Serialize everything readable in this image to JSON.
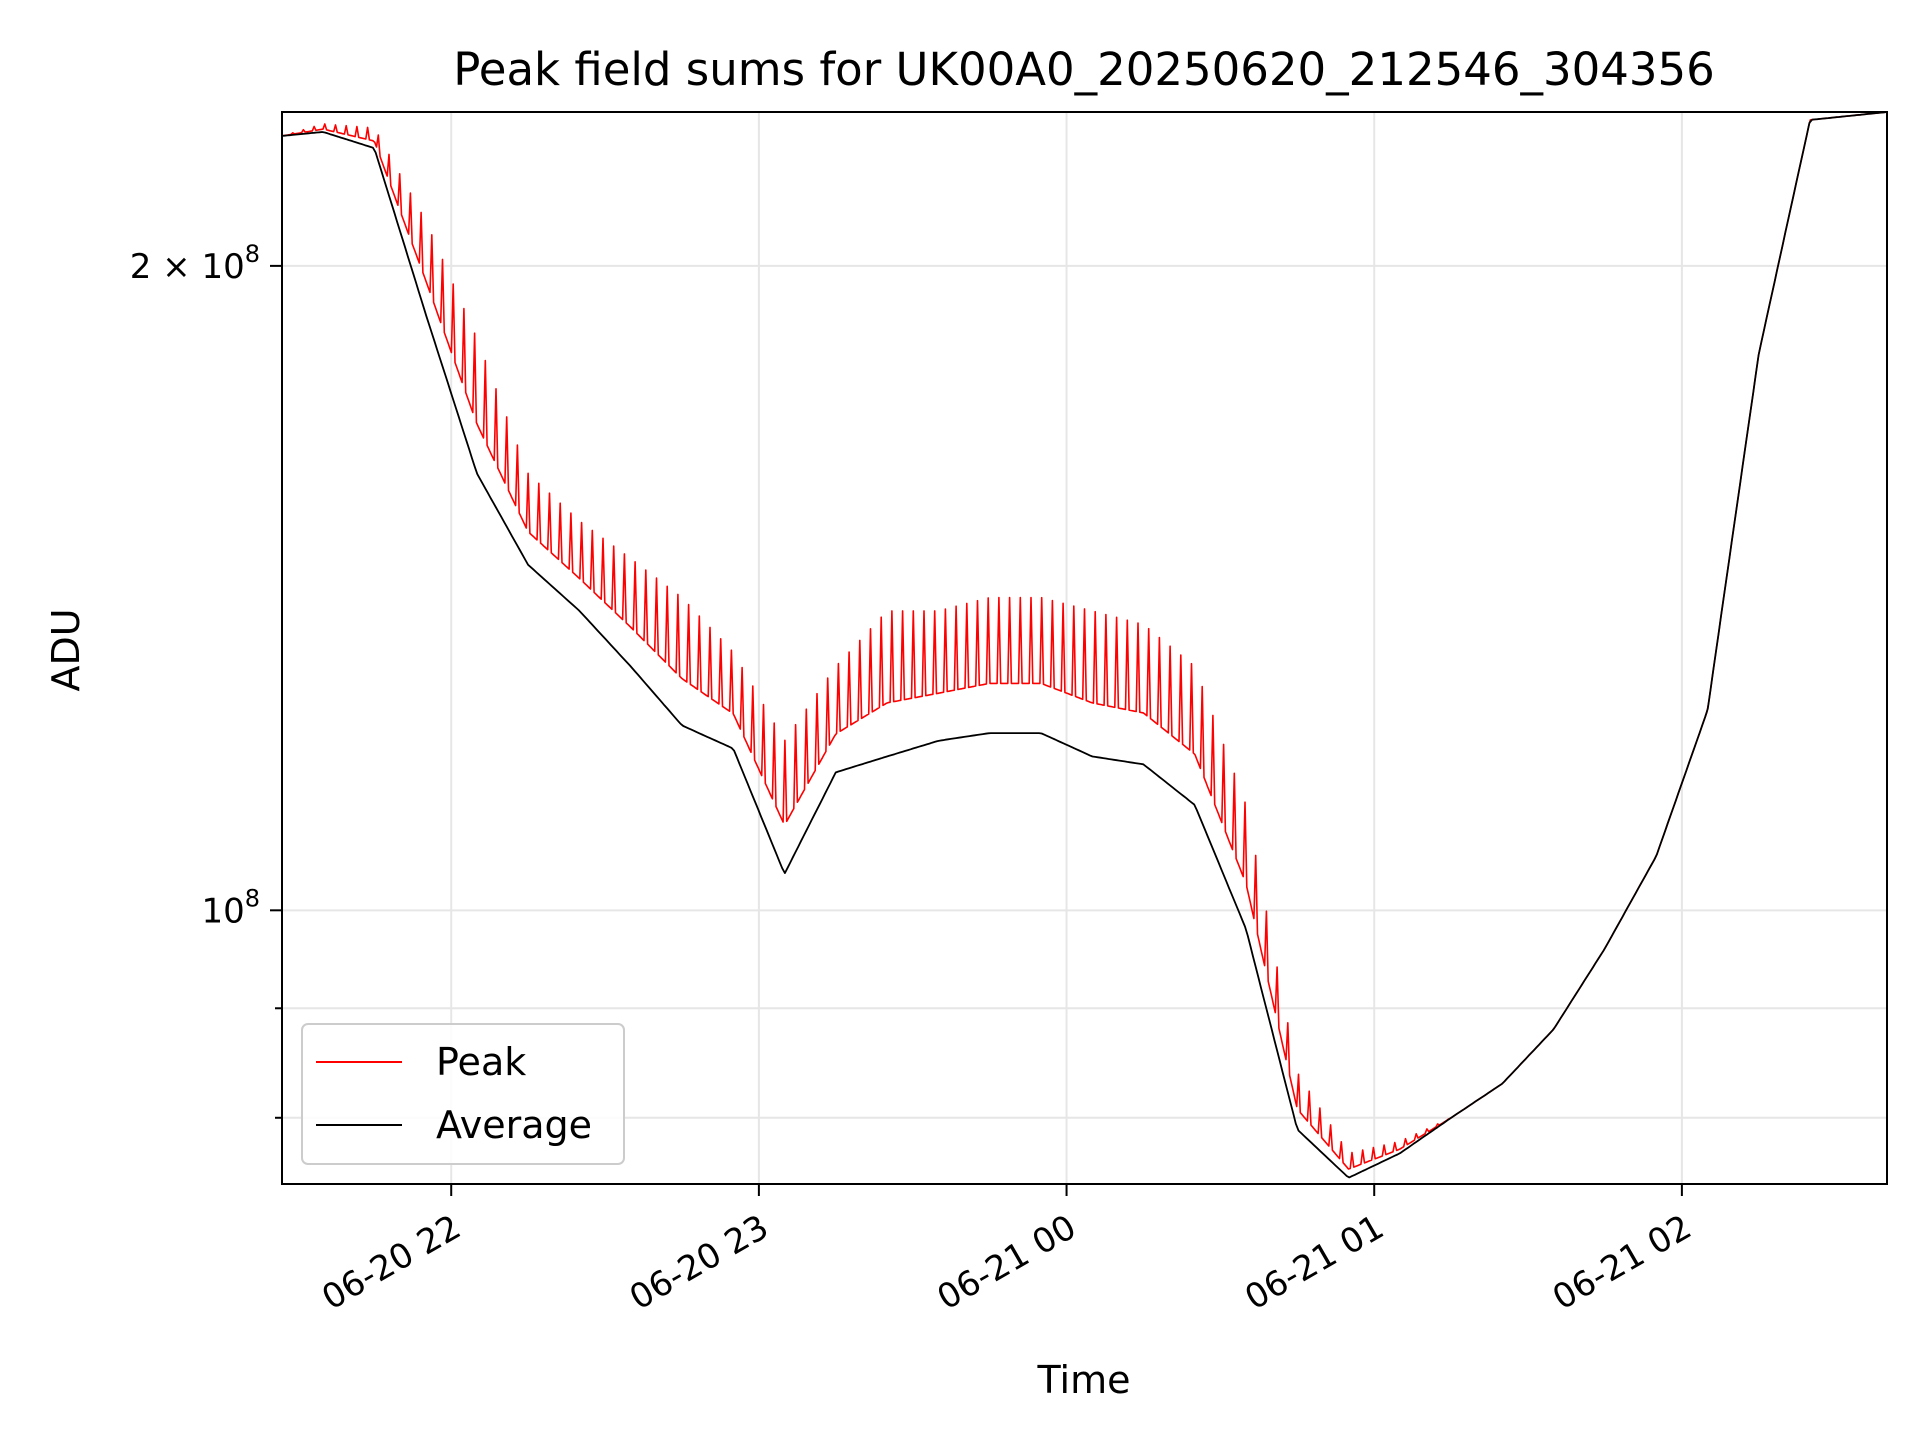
{
  "chart_data": {
    "type": "line",
    "title": "Peak field sums for UK00A0_20250620_212546_304356",
    "xlabel": "Time",
    "ylabel": "ADU",
    "yscale": "log",
    "grid": true,
    "legend_position": "lower-left",
    "xlim": [
      "2025-06-20 21:27",
      "2025-06-21 02:40"
    ],
    "ylim": [
      74500000,
      236000000
    ],
    "x_ticks": [
      {
        "value": "2025-06-20 22:00",
        "label": "06-20 22"
      },
      {
        "value": "2025-06-20 23:00",
        "label": "06-20 23"
      },
      {
        "value": "2025-06-21 00:00",
        "label": "06-21 00"
      },
      {
        "value": "2025-06-21 01:00",
        "label": "06-21 01"
      },
      {
        "value": "2025-06-21 02:00",
        "label": "06-21 02"
      }
    ],
    "y_ticks": [
      {
        "value": 200000000,
        "label": "2×10^8",
        "base": "2 × 10",
        "exp": "8"
      },
      {
        "value": 100000000,
        "label": "10^8",
        "base": "10",
        "exp": "8"
      }
    ],
    "y_minor_ticks": [
      90000000,
      80000000,
      300000000
    ],
    "series": [
      {
        "name": "Peak",
        "color": "#ff0000",
        "spiky": true,
        "x": [
          "2025-06-20 21:27",
          "2025-06-20 21:35",
          "2025-06-20 21:45",
          "2025-06-20 21:55",
          "2025-06-20 22:05",
          "2025-06-20 22:15",
          "2025-06-20 22:25",
          "2025-06-20 22:35",
          "2025-06-20 22:45",
          "2025-06-20 22:55",
          "2025-06-20 23:05",
          "2025-06-20 23:15",
          "2025-06-20 23:25",
          "2025-06-20 23:35",
          "2025-06-20 23:45",
          "2025-06-20 23:55",
          "2025-06-21 00:05",
          "2025-06-21 00:15",
          "2025-06-21 00:25",
          "2025-06-21 00:35",
          "2025-06-21 00:45",
          "2025-06-21 00:55",
          "2025-06-21 01:05",
          "2025-06-21 01:15",
          "2025-06-21 01:25",
          "2025-06-21 01:35",
          "2025-06-21 01:45",
          "2025-06-21 01:55",
          "2025-06-21 02:05",
          "2025-06-21 02:15",
          "2025-06-21 02:25",
          "2025-06-21 02:40"
        ],
        "y": [
          230000000,
          233000000,
          232000000,
          210000000,
          185000000,
          160000000,
          152000000,
          146000000,
          140000000,
          132000000,
          120000000,
          130000000,
          138000000,
          138000000,
          140000000,
          140000000,
          138000000,
          136000000,
          130000000,
          112000000,
          84000000,
          77000000,
          78000000,
          80000000,
          83000000,
          88000000,
          96000000,
          106000000,
          124000000,
          182000000,
          234000000,
          236000000
        ]
      },
      {
        "name": "Average",
        "color": "#000000",
        "spiky": false,
        "x": [
          "2025-06-20 21:27",
          "2025-06-20 21:35",
          "2025-06-20 21:45",
          "2025-06-20 21:55",
          "2025-06-20 22:05",
          "2025-06-20 22:15",
          "2025-06-20 22:25",
          "2025-06-20 22:35",
          "2025-06-20 22:45",
          "2025-06-20 22:55",
          "2025-06-20 23:05",
          "2025-06-20 23:15",
          "2025-06-20 23:25",
          "2025-06-20 23:35",
          "2025-06-20 23:45",
          "2025-06-20 23:55",
          "2025-06-21 00:05",
          "2025-06-21 00:15",
          "2025-06-21 00:25",
          "2025-06-21 00:35",
          "2025-06-21 00:45",
          "2025-06-21 00:55",
          "2025-06-21 01:05",
          "2025-06-21 01:15",
          "2025-06-21 01:25",
          "2025-06-21 01:35",
          "2025-06-21 01:45",
          "2025-06-21 01:55",
          "2025-06-21 02:05",
          "2025-06-21 02:15",
          "2025-06-21 02:25",
          "2025-06-21 02:40"
        ],
        "y": [
          230000000,
          231000000,
          227000000,
          190000000,
          160000000,
          145000000,
          138000000,
          130000000,
          122000000,
          119000000,
          104000000,
          116000000,
          118000000,
          120000000,
          121000000,
          121000000,
          118000000,
          117000000,
          112000000,
          98000000,
          79000000,
          75000000,
          77000000,
          80000000,
          83000000,
          88000000,
          96000000,
          106000000,
          124000000,
          182000000,
          234000000,
          236000000
        ]
      }
    ]
  }
}
